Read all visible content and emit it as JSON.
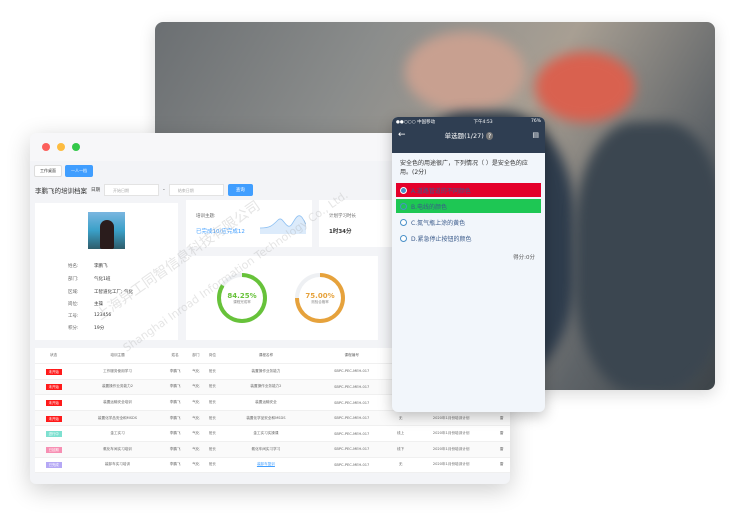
{
  "colors": {
    "accent": "#409eff",
    "green": "#67c23a",
    "orange": "#e6a23c",
    "wrong": "#e4002b",
    "right": "#1ec754",
    "phone_header": "#2f3e52"
  },
  "watermark": {
    "cn": "上海异工同智信息科技有限公司",
    "en": "Shanghai Inroad Information Technology Co., Ltd."
  },
  "desktop": {
    "tabs": [
      {
        "label": "工作桌面"
      },
      {
        "label": "一人一档"
      }
    ],
    "page_title": "李鹏飞的培训档案",
    "date_label": "日期",
    "start_placeholder": "开始日期",
    "end_placeholder": "结束日期",
    "query_button": "查询",
    "profile": {
      "fields": [
        {
          "k": "姓名:",
          "v": "李鹏飞"
        },
        {
          "k": "部门:",
          "v": "气化1班"
        },
        {
          "k": "区域:",
          "v": "工智道化工厂; 气化"
        },
        {
          "k": "岗位:",
          "v": "主操"
        },
        {
          "k": "工号:",
          "v": "123456"
        },
        {
          "k": "积分:",
          "v": "19分"
        }
      ]
    },
    "training": {
      "label": "培训主题:",
      "value": "已完成10/应完成12"
    },
    "plan": {
      "label": "计划学习时长",
      "value": "1时34分"
    },
    "rings": [
      {
        "value": "84.25%",
        "label": "课程完成率",
        "percent": 84.25
      },
      {
        "value": "75.00%",
        "label": "测验合格率",
        "percent": 75
      }
    ],
    "table": {
      "headers": [
        "状态",
        "培训主题",
        "姓名",
        "部门",
        "岗位",
        "课程名称",
        "课程编号",
        "方式",
        "培训计划",
        "讲师"
      ],
      "rows": [
        {
          "status": "未开始",
          "status_color": "#ff1a1a",
          "cells": [
            "工作服务使用学习",
            "李鹏飞",
            "气化",
            "班长",
            "装置操作业务能力",
            "SBPC-PEC-MEH-017",
            "",
            "",
            ""
          ]
        },
        {
          "status": "未开始",
          "status_color": "#ff1a1a",
          "cells": [
            "装置操作业务能力2",
            "李鹏飞",
            "气化",
            "班长",
            "装置操作业务能力2",
            "SBPC-PEC-MEH-017",
            "",
            "",
            ""
          ]
        },
        {
          "status": "未开始",
          "status_color": "#ff1a1a",
          "cells": [
            "装置运输安全培训",
            "李鹏飞",
            "气化",
            "班长",
            "装置运输安全",
            "SBPC-PEC-MEH-017",
            "",
            "",
            ""
          ]
        },
        {
          "status": "未开始",
          "status_color": "#ff1a1a",
          "cells": [
            "装置化学品安全和MSDS",
            "李鹏飞",
            "气化",
            "班长",
            "装置化学品安全和MSDS",
            "SBPC-PEC-MEH-017",
            "无",
            "2020年1月份培训计划",
            "雷"
          ]
        },
        {
          "status": "进行中",
          "status_color": "#7ee0d0",
          "cells": [
            "金工实习",
            "李鹏飞",
            "气化",
            "班长",
            "金工实习实操课",
            "SBPC-PEC-MEH-017",
            "线上",
            "2020年1月份培训计划",
            "雷"
          ]
        },
        {
          "status": "已延期",
          "status_color": "#f78fb3",
          "cells": [
            "氨化车间实习培训",
            "李鹏飞",
            "气化",
            "班长",
            "氨化车间实习学习",
            "SBPC-PEC-MEH-017",
            "线下",
            "2020年1月份培训计划",
            "雷"
          ]
        },
        {
          "status": "已完成",
          "status_color": "#b5a8f5",
          "cells": [
            "装卸车实习培训",
            "李鹏飞",
            "气化",
            "班长",
            "装卸车复训",
            "SBPC-PEC-MEH-017",
            "无",
            "2020年1月份培训计划",
            "雷"
          ]
        }
      ]
    }
  },
  "phone": {
    "carrier": "●●○○○ 中国移动",
    "time": "下午4:53",
    "battery": "76%",
    "title": "单选题(1/27)",
    "question": "安全色的用途很广，下列情况（ ）是安全色的应用。(2分)",
    "options": [
      {
        "label": "A.道路管道的不同颜色",
        "state": "wrong"
      },
      {
        "label": "B.电线的颜色",
        "state": "correct"
      },
      {
        "label": "C.氮气瓶上涂的黄色",
        "state": "none"
      },
      {
        "label": "D.紧急停止按钮的颜色",
        "state": "none"
      }
    ],
    "score": "得分:0分"
  }
}
